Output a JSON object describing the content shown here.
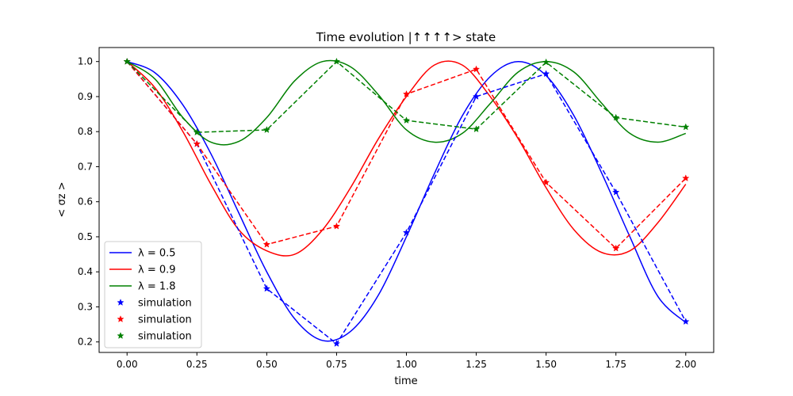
{
  "chart_data": {
    "type": "line",
    "title": "Time evolution |↑↑↑↑> state",
    "xlabel": "time",
    "ylabel": "< σz >",
    "xlim": [
      -0.1,
      2.1
    ],
    "ylim": [
      0.17,
      1.04
    ],
    "xticks": [
      0.0,
      0.25,
      0.5,
      0.75,
      1.0,
      1.25,
      1.5,
      1.75,
      2.0
    ],
    "xtick_labels": [
      "0.00",
      "0.25",
      "0.50",
      "0.75",
      "1.00",
      "1.25",
      "1.50",
      "1.75",
      "2.00"
    ],
    "yticks": [
      0.2,
      0.3,
      0.4,
      0.5,
      0.6,
      0.7,
      0.8,
      0.9,
      1.0
    ],
    "ytick_labels": [
      "0.2",
      "0.3",
      "0.4",
      "0.5",
      "0.6",
      "0.7",
      "0.8",
      "0.9",
      "1.0"
    ],
    "grid": false,
    "legend_position": "lower-left",
    "series": [
      {
        "name": "λ = 0.5",
        "style": "solid",
        "color": "#0000ff",
        "x": [
          0,
          0.1,
          0.2,
          0.3,
          0.4,
          0.5,
          0.6,
          0.7,
          0.8,
          0.9,
          1.0,
          1.1,
          1.2,
          1.3,
          1.4,
          1.5,
          1.6,
          1.7,
          1.8,
          1.9,
          2.0
        ],
        "y": [
          1.0,
          0.968,
          0.876,
          0.737,
          0.568,
          0.4,
          0.266,
          0.204,
          0.23,
          0.334,
          0.5,
          0.68,
          0.845,
          0.957,
          1.0,
          0.96,
          0.845,
          0.68,
          0.5,
          0.33,
          0.255
        ]
      },
      {
        "name": "λ = 0.9",
        "style": "solid",
        "color": "#ff0000",
        "x": [
          0,
          0.1,
          0.2,
          0.3,
          0.4,
          0.5,
          0.6,
          0.7,
          0.8,
          0.9,
          1.0,
          1.1,
          1.2,
          1.3,
          1.4,
          1.5,
          1.6,
          1.7,
          1.8,
          1.9,
          2.0
        ],
        "y": [
          1.0,
          0.925,
          0.8,
          0.65,
          0.52,
          0.46,
          0.45,
          0.52,
          0.64,
          0.78,
          0.9,
          0.99,
          0.99,
          0.9,
          0.78,
          0.64,
          0.52,
          0.455,
          0.46,
          0.54,
          0.65
        ]
      },
      {
        "name": "λ = 1.8",
        "style": "solid",
        "color": "#008000",
        "x": [
          0,
          0.1,
          0.2,
          0.3,
          0.4,
          0.5,
          0.6,
          0.7,
          0.8,
          0.9,
          1.0,
          1.1,
          1.2,
          1.3,
          1.4,
          1.5,
          1.6,
          1.7,
          1.8,
          1.9,
          2.0
        ],
        "y": [
          1.0,
          0.95,
          0.84,
          0.77,
          0.772,
          0.84,
          0.945,
          1.0,
          0.985,
          0.905,
          0.805,
          0.77,
          0.795,
          0.88,
          0.97,
          1.0,
          0.97,
          0.88,
          0.795,
          0.77,
          0.795
        ]
      },
      {
        "name": "simulation",
        "style": "dashed-star",
        "color": "#0000ff",
        "x": [
          0,
          0.25,
          0.5,
          0.75,
          1.0,
          1.25,
          1.5,
          1.75,
          2.0
        ],
        "y": [
          1.0,
          0.765,
          0.352,
          0.195,
          0.512,
          0.9,
          0.965,
          0.627,
          0.258
        ]
      },
      {
        "name": "simulation",
        "style": "dashed-star",
        "color": "#ff0000",
        "x": [
          0,
          0.25,
          0.5,
          0.75,
          1.0,
          1.25,
          1.5,
          1.75,
          2.0
        ],
        "y": [
          1.0,
          0.765,
          0.478,
          0.53,
          0.907,
          0.978,
          0.655,
          0.467,
          0.667
        ]
      },
      {
        "name": "simulation",
        "style": "dashed-star",
        "color": "#008000",
        "x": [
          0,
          0.25,
          0.5,
          0.75,
          1.0,
          1.25,
          1.5,
          1.75,
          2.0
        ],
        "y": [
          1.0,
          0.798,
          0.805,
          1.0,
          0.832,
          0.807,
          0.998,
          0.84,
          0.813
        ]
      }
    ],
    "legend": [
      {
        "label": "λ = 0.5",
        "kind": "line",
        "color": "#0000ff"
      },
      {
        "label": "λ = 0.9",
        "kind": "line",
        "color": "#ff0000"
      },
      {
        "label": "λ = 1.8",
        "kind": "line",
        "color": "#008000"
      },
      {
        "label": "simulation",
        "kind": "star",
        "color": "#0000ff"
      },
      {
        "label": "simulation",
        "kind": "star",
        "color": "#ff0000"
      },
      {
        "label": "simulation",
        "kind": "star",
        "color": "#008000"
      }
    ]
  }
}
